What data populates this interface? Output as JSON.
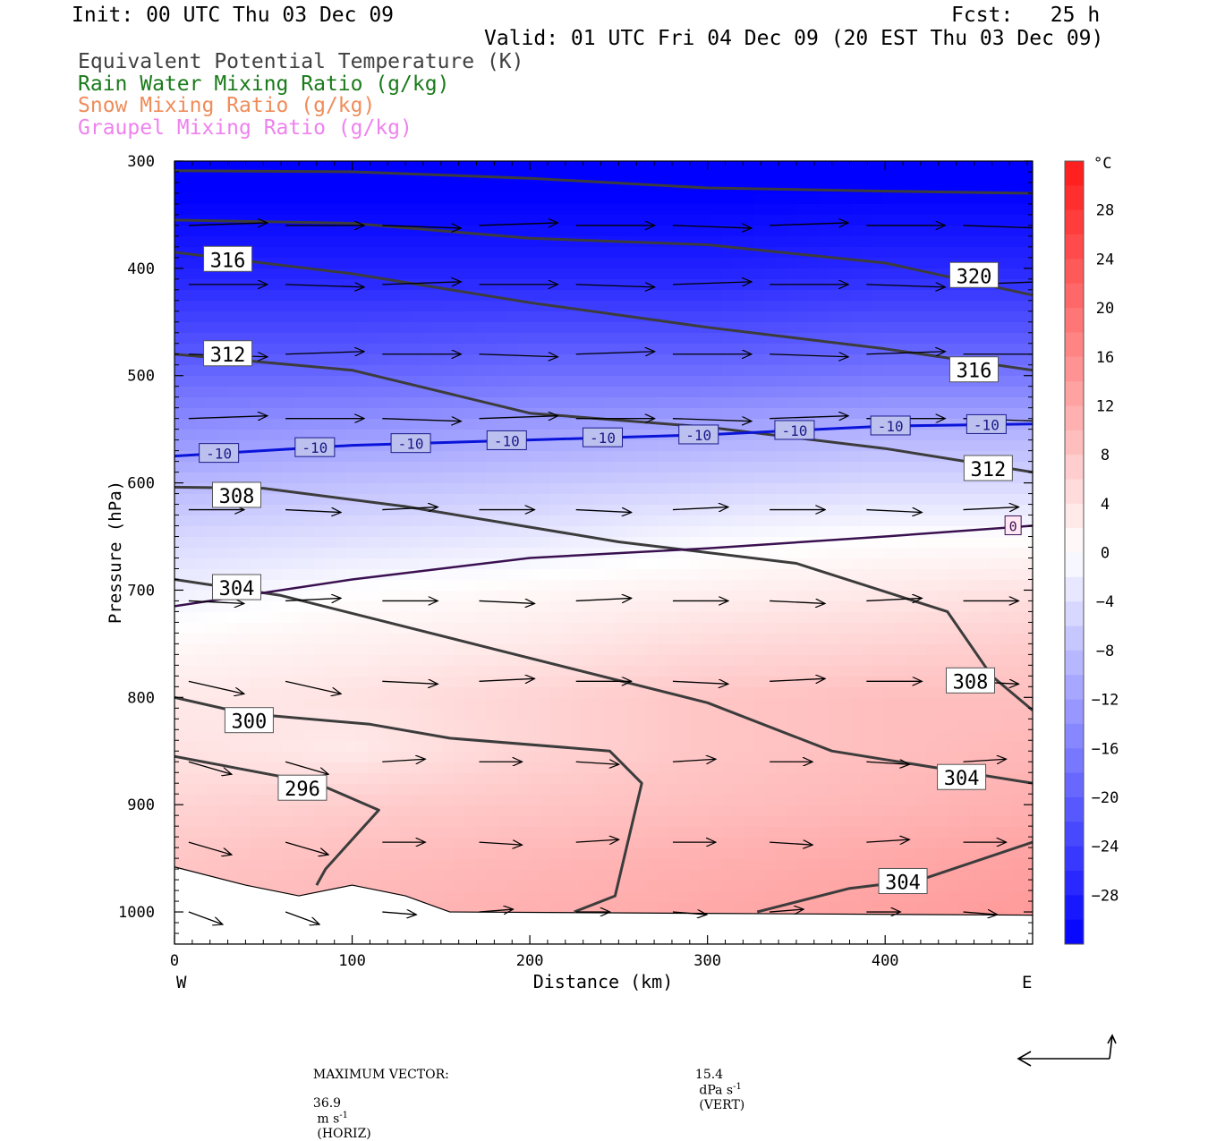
{
  "header": {
    "init": "Init: 00 UTC Thu 03 Dec 09",
    "fcst": "Fcst:   25 h",
    "valid": "Valid: 01 UTC Fri 04 Dec 09 (20 EST Thu 03 Dec 09)"
  },
  "legend": [
    {
      "label": "Equivalent Potential Temperature (K)",
      "color": "#404040"
    },
    {
      "label": "Rain Water Mixing Ratio (g/kg)",
      "color": "#1a7a1a"
    },
    {
      "label": "Snow Mixing Ratio (g/kg)",
      "color": "#ef8c5a"
    },
    {
      "label": "Graupel Mixing Ratio (g/kg)",
      "color": "#ee82ee"
    }
  ],
  "chart_data": {
    "type": "heatmap",
    "xlabel": "Distance (km)",
    "ylabel": "Pressure (hPa)",
    "xlim": [
      0,
      483
    ],
    "ylim": [
      1030,
      300
    ],
    "y_scale": "linear",
    "x_ticks": [
      0,
      100,
      200,
      300,
      400
    ],
    "y_ticks": [
      300,
      400,
      500,
      600,
      700,
      800,
      900,
      1000
    ],
    "x_end_labels": {
      "left": "W",
      "right": "E"
    },
    "colorbar": {
      "unit": "°C",
      "ticks": [
        28,
        24,
        20,
        16,
        12,
        8,
        4,
        0,
        -4,
        -8,
        -12,
        -16,
        -20,
        -24,
        -28
      ],
      "range": [
        -32,
        32
      ]
    },
    "temperature_field": {
      "x": [
        0,
        100,
        200,
        300,
        400,
        483
      ],
      "p": [
        300,
        400,
        500,
        550,
        600,
        650,
        700,
        750,
        800,
        850,
        900,
        950,
        1000
      ],
      "values_c": [
        [
          -34,
          -34,
          -34,
          -34,
          -34,
          -34
        ],
        [
          -28,
          -28,
          -28,
          -28,
          -27,
          -27
        ],
        [
          -19,
          -19,
          -18,
          -18,
          -17,
          -17
        ],
        [
          -14,
          -13,
          -12,
          -11,
          -10,
          -10
        ],
        [
          -9,
          -8,
          -7,
          -6,
          -5,
          -5
        ],
        [
          -5,
          -4,
          -3,
          -1,
          0,
          0
        ],
        [
          -2,
          0,
          1,
          2,
          3,
          4
        ],
        [
          1,
          2,
          3,
          5,
          6,
          7
        ],
        [
          3,
          4,
          6,
          8,
          9,
          9
        ],
        [
          4,
          3,
          6,
          8,
          9,
          10
        ],
        [
          6,
          7,
          8,
          9,
          10,
          11
        ],
        [
          8,
          9,
          10,
          11,
          12,
          13
        ],
        [
          9,
          10,
          11,
          12,
          13,
          14
        ]
      ]
    },
    "theta_e_contours": [
      {
        "label": "320",
        "points": [
          [
            0,
            309
          ],
          [
            100,
            310
          ],
          [
            200,
            316
          ],
          [
            300,
            325
          ],
          [
            400,
            328
          ],
          [
            483,
            330
          ]
        ]
      },
      {
        "label": "320",
        "points": [
          [
            0,
            355
          ],
          [
            100,
            358
          ],
          [
            200,
            372
          ],
          [
            300,
            378
          ],
          [
            400,
            395
          ],
          [
            483,
            425
          ]
        ]
      },
      {
        "label": "316",
        "points": [
          [
            0,
            385
          ],
          [
            100,
            405
          ],
          [
            200,
            432
          ],
          [
            300,
            455
          ],
          [
            400,
            475
          ],
          [
            483,
            495
          ]
        ]
      },
      {
        "label": "312",
        "points": [
          [
            0,
            480
          ],
          [
            100,
            495
          ],
          [
            200,
            535
          ],
          [
            300,
            548
          ],
          [
            400,
            568
          ],
          [
            483,
            590
          ]
        ]
      },
      {
        "label": "308",
        "points": [
          [
            0,
            604
          ],
          [
            50,
            605
          ],
          [
            130,
            622
          ],
          [
            250,
            655
          ],
          [
            350,
            675
          ],
          [
            435,
            720
          ],
          [
            460,
            780
          ],
          [
            483,
            812
          ]
        ]
      },
      {
        "label": "304",
        "points": [
          [
            0,
            690
          ],
          [
            60,
            705
          ],
          [
            180,
            755
          ],
          [
            300,
            805
          ],
          [
            370,
            850
          ],
          [
            483,
            880
          ]
        ]
      },
      {
        "label": "300",
        "points": [
          [
            0,
            800
          ],
          [
            40,
            815
          ],
          [
            110,
            825
          ],
          [
            155,
            838
          ],
          [
            245,
            850
          ],
          [
            263,
            880
          ],
          [
            248,
            985
          ],
          [
            225,
            1000
          ]
        ]
      },
      {
        "label": "296",
        "points": [
          [
            0,
            855
          ],
          [
            80,
            880
          ],
          [
            115,
            905
          ],
          [
            85,
            960
          ],
          [
            80,
            975
          ]
        ]
      },
      {
        "label": "304",
        "points": [
          [
            328,
            1000
          ],
          [
            380,
            978
          ],
          [
            420,
            970
          ],
          [
            483,
            935
          ]
        ]
      }
    ],
    "isotherm_minus10": {
      "label": "-10",
      "points": [
        [
          0,
          575
        ],
        [
          100,
          565
        ],
        [
          200,
          560
        ],
        [
          300,
          555
        ],
        [
          400,
          547
        ],
        [
          483,
          545
        ]
      ]
    },
    "isotherm_zero": {
      "label": "0",
      "points": [
        [
          0,
          715
        ],
        [
          100,
          690
        ],
        [
          200,
          670
        ],
        [
          300,
          661
        ],
        [
          400,
          650
        ],
        [
          483,
          640
        ]
      ]
    },
    "max_vector": {
      "label": "MAXIMUM VECTOR:",
      "horiz_value": "36.9",
      "horiz_unit": "m s",
      "horiz_exp": "-1",
      "horiz_tag": "(HORIZ)",
      "vert_value": "15.4",
      "vert_unit": "dPa s",
      "vert_exp": "-1",
      "vert_tag": "(VERT)"
    }
  }
}
